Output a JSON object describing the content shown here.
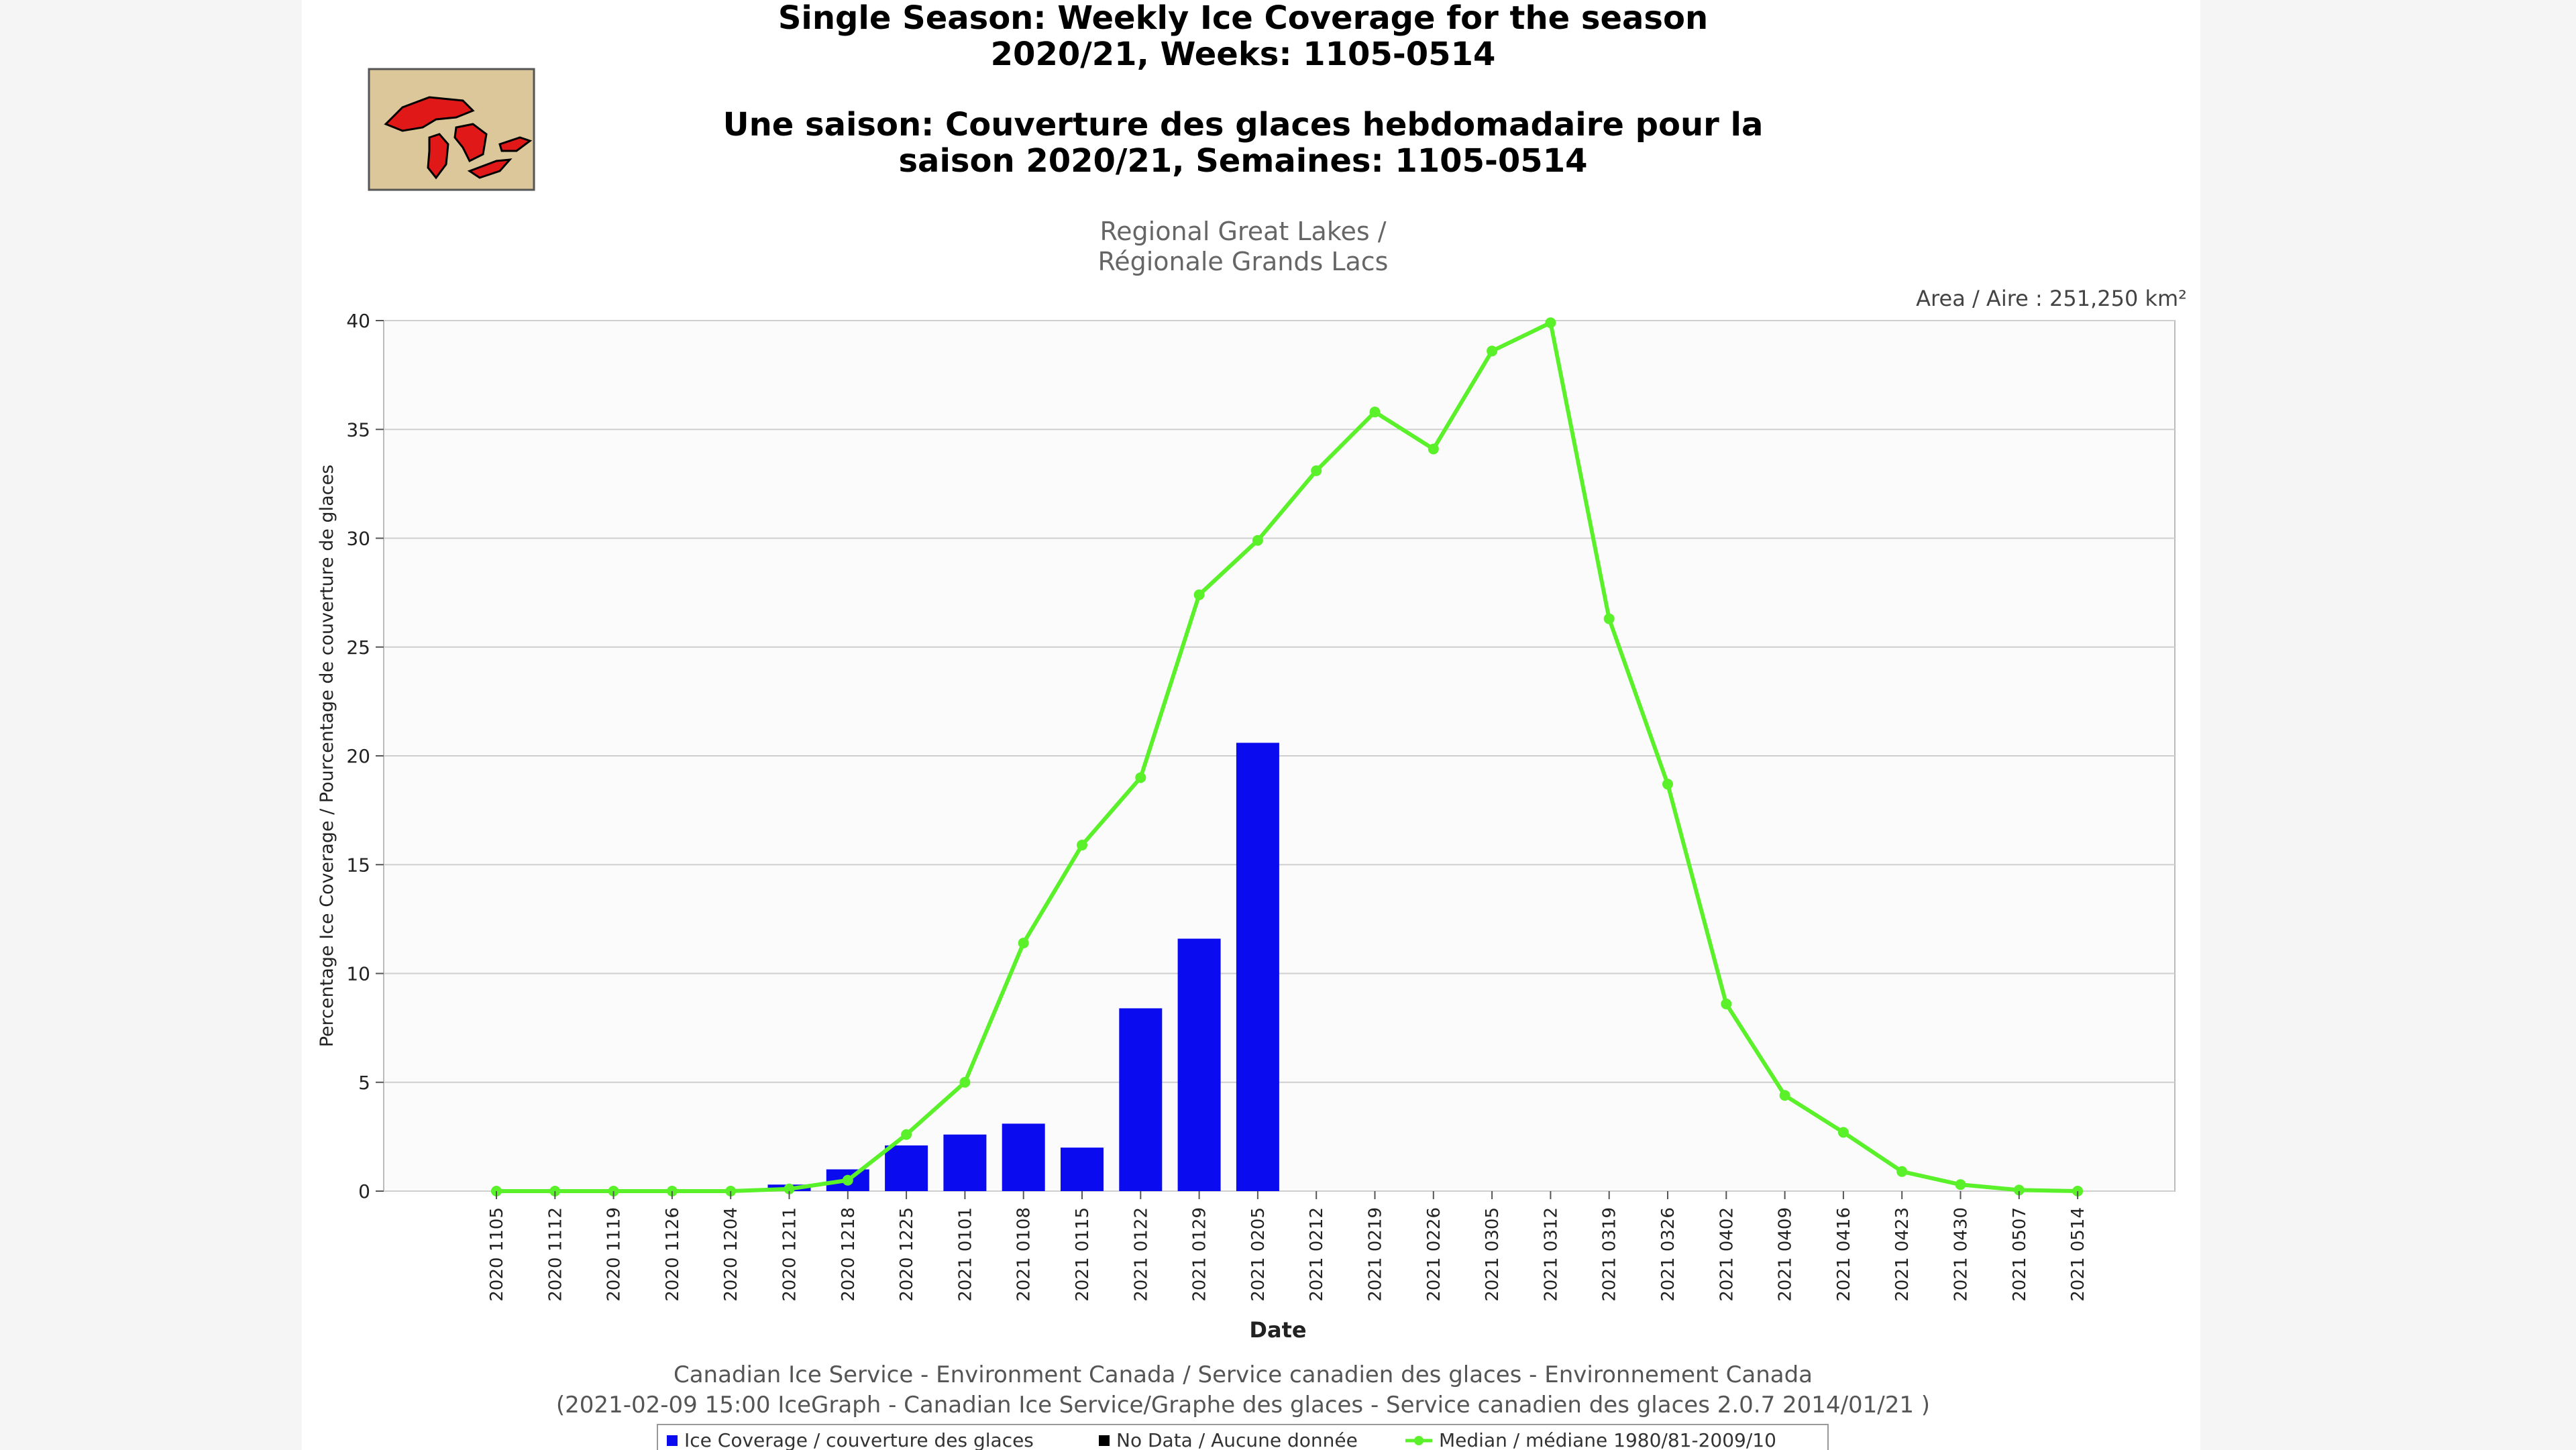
{
  "titles": {
    "en_line1": "Single Season: Weekly Ice Coverage for the season",
    "en_line2": "2020/21, Weeks: 1105-0514",
    "fr_line1": "Une saison: Couverture des glaces hebdomadaire pour la",
    "fr_line2": "saison 2020/21, Semaines: 1105-0514"
  },
  "region": {
    "line1": "Regional Great Lakes /",
    "line2": "Régionale Grands Lacs"
  },
  "area_label": "Area / Aire : 251,250 km²",
  "credits": {
    "line1": "Canadian Ice Service - Environment Canada / Service canadien des glaces - Environnement Canada",
    "line2": "(2021-02-09 15:00 IceGraph - Canadian Ice Service/Graphe des glaces - Service canadien des glaces 2.0.7 2014/01/21 )"
  },
  "colors": {
    "bar": "#0b0bf0",
    "median": "#5af02a",
    "grid": "#cfcfcf",
    "logo_bg": "#dcc79a",
    "logo_lakes": "#e01818"
  },
  "chart_data": {
    "type": "bar",
    "title": "Single Season: Weekly Ice Coverage for the season 2020/21, Weeks: 1105-0514",
    "xlabel": "Date",
    "ylabel": "Percentage Ice Coverage / Pourcentage de couverture de glaces",
    "ylim": [
      0,
      40
    ],
    "yticks": [
      0,
      5,
      10,
      15,
      20,
      25,
      30,
      35,
      40
    ],
    "grid": true,
    "categories": [
      "2020 1105",
      "2020 1112",
      "2020 1119",
      "2020 1126",
      "2020 1204",
      "2020 1211",
      "2020 1218",
      "2020 1225",
      "2021 0101",
      "2021 0108",
      "2021 0115",
      "2021 0122",
      "2021 0129",
      "2021 0205",
      "2021 0212",
      "2021 0219",
      "2021 0226",
      "2021 0305",
      "2021 0312",
      "2021 0319",
      "2021 0326",
      "2021 0402",
      "2021 0409",
      "2021 0416",
      "2021 0423",
      "2021 0430",
      "2021 0507",
      "2021 0514"
    ],
    "series": [
      {
        "name": "Ice Coverage / couverture des glaces",
        "type": "bar",
        "values": [
          0,
          0,
          0,
          0,
          0,
          0.3,
          1.0,
          2.1,
          2.6,
          3.1,
          2.0,
          8.4,
          11.6,
          20.6,
          null,
          null,
          null,
          null,
          null,
          null,
          null,
          null,
          null,
          null,
          null,
          null,
          null,
          null
        ]
      },
      {
        "name": "Median / médiane 1980/81-2009/10",
        "type": "line",
        "values": [
          0,
          0,
          0,
          0,
          0,
          0.1,
          0.5,
          2.6,
          5.0,
          11.4,
          15.9,
          19.0,
          27.4,
          29.9,
          33.1,
          35.8,
          34.1,
          38.6,
          39.9,
          26.3,
          18.7,
          8.6,
          4.4,
          2.7,
          0.9,
          0.3,
          0.05,
          0
        ]
      }
    ],
    "legend": [
      {
        "label": "Ice Coverage / couverture des glaces",
        "marker": "blue-square"
      },
      {
        "label": "No Data / Aucune donnée",
        "marker": "black-square"
      },
      {
        "label": "Median / médiane 1980/81-2009/10",
        "marker": "green-line-dot"
      }
    ],
    "legend_position": "bottom-center"
  }
}
